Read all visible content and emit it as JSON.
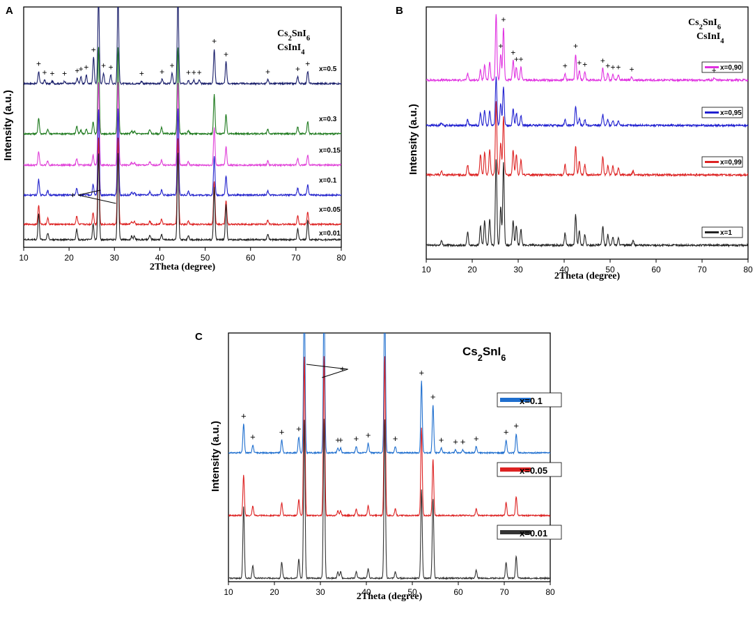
{
  "chart_data": [
    {
      "panel": "A",
      "type": "line",
      "xlabel": "2Theta (degree)",
      "ylabel": "Intensity (a.u.)",
      "xlim": [
        10,
        80
      ],
      "xticks": [
        "10",
        "20",
        "30",
        "40",
        "50",
        "60",
        "70",
        "80"
      ],
      "legend": [
        {
          "symbol": "+",
          "text": "Cs2SnI6"
        },
        {
          "symbol": "*",
          "text": "CsInI4"
        }
      ],
      "phase_annotation": "+",
      "series": [
        {
          "name": "x=0.5",
          "color": "#1a1f6b",
          "peaks": [
            [
              13.3,
              14
            ],
            [
              14.6,
              4
            ],
            [
              16.3,
              3
            ],
            [
              19.0,
              3
            ],
            [
              21.8,
              6
            ],
            [
              22.6,
              8
            ],
            [
              23.8,
              10
            ],
            [
              25.4,
              30
            ],
            [
              26.5,
              100
            ],
            [
              27.6,
              12
            ],
            [
              29.2,
              10
            ],
            [
              30.8,
              100
            ],
            [
              36.0,
              3
            ],
            [
              40.5,
              5
            ],
            [
              42.7,
              12
            ],
            [
              44.0,
              100
            ],
            [
              46.3,
              4
            ],
            [
              47.5,
              4
            ],
            [
              48.7,
              4
            ],
            [
              52.0,
              40
            ],
            [
              54.6,
              25
            ],
            [
              63.8,
              5
            ],
            [
              70.4,
              8
            ],
            [
              72.6,
              14
            ]
          ]
        },
        {
          "name": "x=0.3",
          "color": "#1e7a1e",
          "peaks": [
            [
              13.3,
              18
            ],
            [
              15.3,
              5
            ],
            [
              21.7,
              9
            ],
            [
              22.6,
              4
            ],
            [
              23.8,
              5
            ],
            [
              25.3,
              14
            ],
            [
              26.5,
              100
            ],
            [
              30.8,
              100
            ],
            [
              33.8,
              3
            ],
            [
              34.4,
              3
            ],
            [
              37.8,
              5
            ],
            [
              40.4,
              7
            ],
            [
              44.0,
              100
            ],
            [
              46.3,
              4
            ],
            [
              52.0,
              45
            ],
            [
              54.6,
              22
            ],
            [
              63.8,
              5
            ],
            [
              70.4,
              8
            ],
            [
              72.6,
              14
            ]
          ]
        },
        {
          "name": "x=0.15",
          "color": "#e040d8",
          "peaks": [
            [
              13.3,
              16
            ],
            [
              15.3,
              5
            ],
            [
              21.7,
              8
            ],
            [
              25.3,
              12
            ],
            [
              26.5,
              100
            ],
            [
              30.8,
              100
            ],
            [
              33.8,
              3
            ],
            [
              34.4,
              3
            ],
            [
              37.8,
              4
            ],
            [
              40.4,
              6
            ],
            [
              44.0,
              100
            ],
            [
              46.3,
              4
            ],
            [
              52.0,
              45
            ],
            [
              54.6,
              22
            ],
            [
              63.8,
              5
            ],
            [
              70.4,
              8
            ],
            [
              72.6,
              12
            ]
          ]
        },
        {
          "name": "x=0.1",
          "color": "#2222cc",
          "peaks": [
            [
              13.3,
              18
            ],
            [
              15.3,
              5
            ],
            [
              21.7,
              8
            ],
            [
              25.3,
              12
            ],
            [
              26.5,
              100
            ],
            [
              30.8,
              100
            ],
            [
              33.8,
              3
            ],
            [
              34.4,
              3
            ],
            [
              37.8,
              4
            ],
            [
              40.4,
              6
            ],
            [
              44.0,
              100
            ],
            [
              46.3,
              4
            ],
            [
              52.0,
              45
            ],
            [
              54.6,
              22
            ],
            [
              63.8,
              5
            ],
            [
              70.4,
              8
            ],
            [
              72.6,
              12
            ]
          ]
        },
        {
          "name": "x=0.05",
          "color": "#dd2222",
          "peaks": [
            [
              13.3,
              22
            ],
            [
              15.3,
              7
            ],
            [
              21.7,
              10
            ],
            [
              25.3,
              14
            ],
            [
              26.5,
              100
            ],
            [
              30.8,
              100
            ],
            [
              33.8,
              3
            ],
            [
              34.4,
              3
            ],
            [
              37.8,
              4
            ],
            [
              40.4,
              6
            ],
            [
              44.0,
              100
            ],
            [
              46.3,
              4
            ],
            [
              52.0,
              50
            ],
            [
              54.6,
              28
            ],
            [
              63.8,
              5
            ],
            [
              70.4,
              10
            ],
            [
              72.6,
              14
            ]
          ]
        },
        {
          "name": "x=0.01",
          "color": "#222222",
          "peaks": [
            [
              13.3,
              30
            ],
            [
              15.3,
              8
            ],
            [
              21.7,
              12
            ],
            [
              25.3,
              18
            ],
            [
              26.5,
              100
            ],
            [
              30.8,
              100
            ],
            [
              33.8,
              4
            ],
            [
              34.4,
              4
            ],
            [
              37.8,
              5
            ],
            [
              40.4,
              6
            ],
            [
              44.0,
              100
            ],
            [
              46.3,
              5
            ],
            [
              52.0,
              60
            ],
            [
              54.6,
              40
            ],
            [
              63.8,
              6
            ],
            [
              70.4,
              12
            ],
            [
              72.6,
              22
            ]
          ]
        }
      ]
    },
    {
      "panel": "B",
      "type": "line",
      "xlabel": "2Theta (degree)",
      "ylabel": "Intensity (a.u.)",
      "xlim": [
        10,
        80
      ],
      "xticks": [
        "10",
        "20",
        "30",
        "40",
        "50",
        "60",
        "70",
        "80"
      ],
      "legend": [
        {
          "symbol": "+",
          "text": "Cs2SnI6"
        },
        {
          "symbol": "",
          "text": "CsInI4"
        }
      ],
      "series": [
        {
          "name": "x=0,90",
          "color": "#e030e0",
          "peaks": [
            [
              19.0,
              10
            ],
            [
              21.8,
              15
            ],
            [
              22.7,
              22
            ],
            [
              23.8,
              28
            ],
            [
              25.2,
              100
            ],
            [
              26.2,
              40
            ],
            [
              26.8,
              80
            ],
            [
              28.9,
              30
            ],
            [
              29.6,
              20
            ],
            [
              30.6,
              20
            ],
            [
              40.2,
              10
            ],
            [
              42.5,
              40
            ],
            [
              43.3,
              15
            ],
            [
              44.5,
              12
            ],
            [
              48.4,
              18
            ],
            [
              49.5,
              10
            ],
            [
              50.6,
              8
            ],
            [
              51.8,
              8
            ],
            [
              54.7,
              5
            ],
            [
              72.6,
              3
            ]
          ]
        },
        {
          "name": "x=0,95",
          "color": "#2020d0",
          "peaks": [
            [
              13.3,
              6
            ],
            [
              19.0,
              12
            ],
            [
              21.8,
              25
            ],
            [
              22.7,
              30
            ],
            [
              23.8,
              30
            ],
            [
              25.2,
              100
            ],
            [
              26.2,
              45
            ],
            [
              26.8,
              80
            ],
            [
              28.9,
              35
            ],
            [
              29.6,
              25
            ],
            [
              30.6,
              20
            ],
            [
              40.2,
              12
            ],
            [
              42.5,
              38
            ],
            [
              43.3,
              15
            ],
            [
              44.5,
              12
            ],
            [
              48.4,
              22
            ],
            [
              49.5,
              12
            ],
            [
              50.6,
              10
            ],
            [
              51.8,
              8
            ]
          ]
        },
        {
          "name": "x=0,99",
          "color": "#dd2222",
          "peaks": [
            [
              13.3,
              5
            ],
            [
              19.0,
              14
            ],
            [
              21.8,
              28
            ],
            [
              22.7,
              30
            ],
            [
              23.8,
              35
            ],
            [
              25.2,
              100
            ],
            [
              26.2,
              45
            ],
            [
              26.8,
              80
            ],
            [
              28.9,
              35
            ],
            [
              29.6,
              28
            ],
            [
              30.6,
              20
            ],
            [
              40.2,
              14
            ],
            [
              42.5,
              40
            ],
            [
              43.3,
              18
            ],
            [
              44.5,
              14
            ],
            [
              48.4,
              25
            ],
            [
              49.5,
              12
            ],
            [
              50.6,
              12
            ],
            [
              51.8,
              10
            ],
            [
              55.0,
              5
            ]
          ]
        },
        {
          "name": "x=1",
          "color": "#222222",
          "peaks": [
            [
              13.3,
              5
            ],
            [
              19.0,
              15
            ],
            [
              21.8,
              22
            ],
            [
              22.7,
              28
            ],
            [
              23.8,
              30
            ],
            [
              25.2,
              100
            ],
            [
              26.2,
              45
            ],
            [
              26.8,
              95
            ],
            [
              28.9,
              28
            ],
            [
              29.6,
              22
            ],
            [
              30.6,
              18
            ],
            [
              40.2,
              14
            ],
            [
              42.5,
              35
            ],
            [
              43.3,
              16
            ],
            [
              44.5,
              12
            ],
            [
              48.4,
              22
            ],
            [
              49.5,
              12
            ],
            [
              50.6,
              10
            ],
            [
              51.8,
              8
            ],
            [
              55.0,
              5
            ]
          ]
        }
      ]
    },
    {
      "panel": "C",
      "type": "line",
      "xlabel": "2Theta (degree)",
      "ylabel": "Intensity (a.u.)",
      "xlim": [
        10,
        80
      ],
      "xticks": [
        "10",
        "20",
        "30",
        "40",
        "50",
        "60",
        "70",
        "80"
      ],
      "legend": [
        {
          "symbol": "+",
          "text": "Cs2SnI6"
        }
      ],
      "phase_annotation": "+",
      "series": [
        {
          "name": "x=0.1",
          "color": "#1f6fcf",
          "peaks": [
            [
              13.3,
              18
            ],
            [
              15.3,
              5
            ],
            [
              21.6,
              8
            ],
            [
              25.3,
              10
            ],
            [
              26.5,
              100
            ],
            [
              30.8,
              100
            ],
            [
              33.8,
              3
            ],
            [
              34.4,
              3
            ],
            [
              37.8,
              4
            ],
            [
              40.4,
              6
            ],
            [
              44.0,
              100
            ],
            [
              46.3,
              4
            ],
            [
              52.0,
              45
            ],
            [
              54.5,
              30
            ],
            [
              56.3,
              3
            ],
            [
              59.4,
              2
            ],
            [
              61.0,
              2
            ],
            [
              63.9,
              4
            ],
            [
              70.4,
              8
            ],
            [
              72.6,
              12
            ]
          ]
        },
        {
          "name": "x=0.05",
          "color": "#dd2222",
          "peaks": [
            [
              13.3,
              25
            ],
            [
              15.3,
              6
            ],
            [
              21.6,
              8
            ],
            [
              25.3,
              10
            ],
            [
              26.5,
              100
            ],
            [
              30.8,
              100
            ],
            [
              33.8,
              3
            ],
            [
              34.4,
              3
            ],
            [
              37.8,
              4
            ],
            [
              40.4,
              6
            ],
            [
              44.0,
              100
            ],
            [
              46.3,
              4
            ],
            [
              52.0,
              55
            ],
            [
              54.5,
              35
            ],
            [
              63.9,
              4
            ],
            [
              70.4,
              8
            ],
            [
              72.6,
              12
            ]
          ]
        },
        {
          "name": "x=0.01",
          "color": "#333333",
          "peaks": [
            [
              13.3,
              45
            ],
            [
              15.3,
              8
            ],
            [
              21.6,
              10
            ],
            [
              25.3,
              12
            ],
            [
              26.5,
              100
            ],
            [
              30.8,
              100
            ],
            [
              33.8,
              4
            ],
            [
              34.4,
              4
            ],
            [
              37.8,
              4
            ],
            [
              40.4,
              6
            ],
            [
              44.0,
              100
            ],
            [
              46.3,
              4
            ],
            [
              52.0,
              55
            ],
            [
              54.5,
              50
            ],
            [
              63.9,
              5
            ],
            [
              70.4,
              10
            ],
            [
              72.6,
              14
            ]
          ]
        }
      ]
    }
  ]
}
